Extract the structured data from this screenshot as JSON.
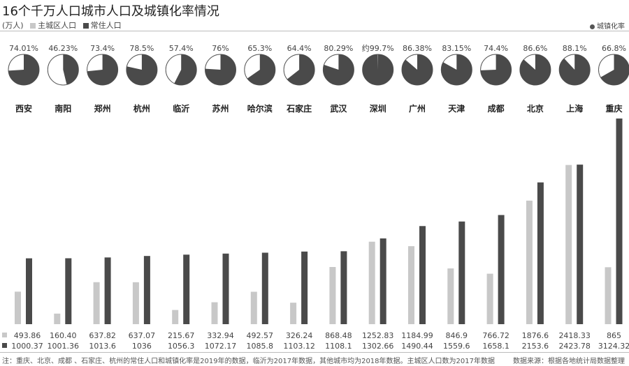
{
  "chart_data": {
    "type": "bar",
    "title": "16个千万人口城市人口及城镇化率情况",
    "unit": "(万人)",
    "categories": [
      "西安",
      "南阳",
      "郑州",
      "杭州",
      "临沂",
      "苏州",
      "哈尔滨",
      "石家庄",
      "武汉",
      "深圳",
      "广州",
      "天津",
      "成都",
      "北京",
      "上海",
      "重庆"
    ],
    "series": [
      {
        "name": "主城区人口",
        "color": "#c8c8c8",
        "values": [
          493.86,
          160.4,
          637.82,
          637.07,
          215.67,
          332.94,
          492.57,
          326.24,
          868.48,
          1252.83,
          1184.99,
          846.9,
          766.72,
          1876.6,
          2418.33,
          865
        ],
        "labels": [
          "493.86",
          "160.40",
          "637.82",
          "637.07",
          "215.67",
          "332.94",
          "492.57",
          "326.24",
          "868.48",
          "1252.83",
          "1184.99",
          "846.9",
          "766.72",
          "1876.6",
          "2418.33",
          "865"
        ]
      },
      {
        "name": "常住人口",
        "color": "#4a4a4a",
        "values": [
          1000.37,
          1001.36,
          1013.6,
          1036,
          1056.3,
          1072.17,
          1085.8,
          1103.12,
          1108.1,
          1302.66,
          1490.44,
          1559.6,
          1658.1,
          2153.6,
          2423.78,
          3124.32
        ],
        "labels": [
          "1000.37",
          "1001.36",
          "1013.6",
          "1036",
          "1056.3",
          "1072.17",
          "1085.8",
          "1103.12",
          "1108.1",
          "1302.66",
          "1490.44",
          "1559.6",
          "1658.1",
          "2153.6",
          "2423.78",
          "3124.32"
        ]
      }
    ],
    "urbanization": {
      "name": "城镇化率",
      "values": [
        74.01,
        46.23,
        73.4,
        78.5,
        57.4,
        76,
        65.3,
        64.4,
        80.29,
        99.7,
        86.38,
        83.15,
        74.4,
        86.6,
        88.1,
        66.8
      ],
      "labels": [
        "74.01%",
        "46.23%",
        "73.4%",
        "78.5%",
        "57.4%",
        "76%",
        "65.3%",
        "64.4%",
        "80.29%",
        "约99.7%",
        "86.38%",
        "83.15%",
        "74.4%",
        "86.6%",
        "88.1%",
        "66.8%"
      ],
      "color": "#4a4a4a"
    },
    "ylim": [
      0,
      3124.32
    ]
  },
  "note": "注：重庆、北京、成都 、石家庄、杭州的常住人口和城镇化率是2019年的数据，临沂为2017年数据，其他城市均为2018年数据。主城区人口数为2017年数据",
  "source": "数据来源：根据各地统计局数据整理"
}
